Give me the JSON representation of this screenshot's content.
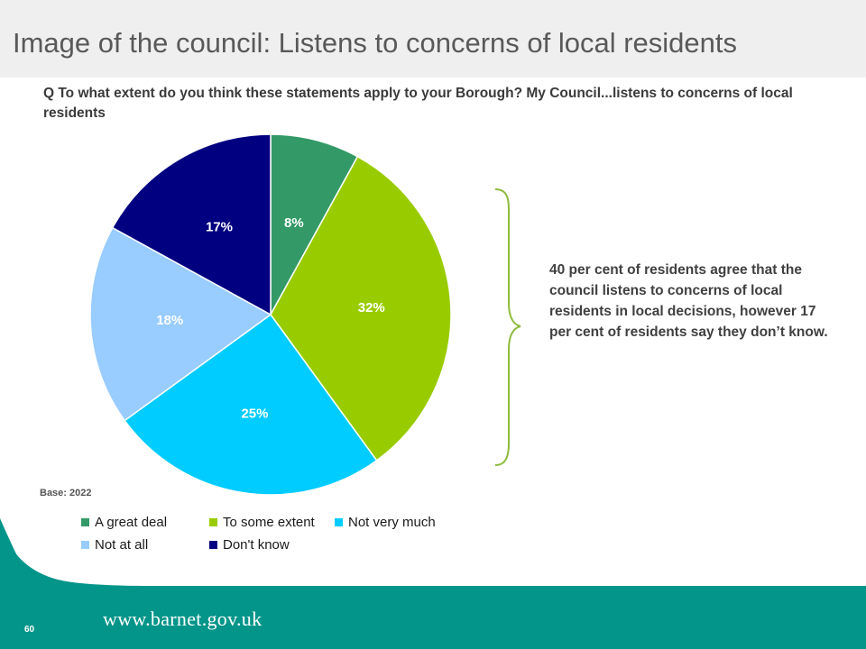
{
  "slide": {
    "title": "Image of the council: Listens to concerns of local residents",
    "question": "Q  To what extent do you think these statements apply to your Borough? My Council...listens to concerns of local residents",
    "base": "Base:  2022",
    "annotation": "40 per cent of residents agree that the council listens to concerns of local residents in local decisions, however 17 per cent of residents say they don’t know.",
    "footer_url": "www.barnet.gov.uk",
    "page_number": "60"
  },
  "colors": {
    "title_band": "#efefef",
    "footer_teal": "#04958a",
    "brace": "#8dbb3c"
  },
  "chart_data": {
    "type": "pie",
    "start_angle_deg": 0,
    "direction": "clockwise",
    "legend_position": "bottom",
    "slices": [
      {
        "name": "A great deal",
        "value": 8,
        "label": "8%",
        "color": "#339966",
        "label_color": "#ffffff"
      },
      {
        "name": "To some extent",
        "value": 32,
        "label": "32%",
        "color": "#99cc00",
        "label_color": "#ffffff"
      },
      {
        "name": "Not very much",
        "value": 25,
        "label": "25%",
        "color": "#00ccff",
        "label_color": "#ffffff"
      },
      {
        "name": "Not at all",
        "value": 18,
        "label": "18%",
        "color": "#99ccff",
        "label_color": "#ffffff"
      },
      {
        "name": "Don't know",
        "value": 17,
        "label": "17%",
        "color": "#000080",
        "label_color": "#ffffff"
      }
    ]
  }
}
